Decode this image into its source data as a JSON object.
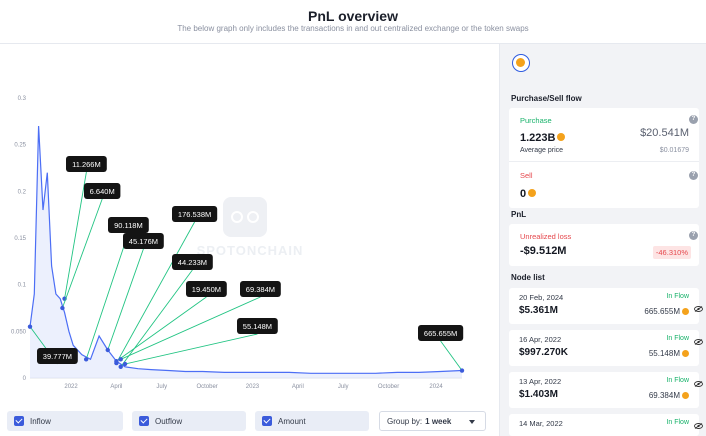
{
  "header": {
    "title": "PnL overview",
    "subtitle": "The below graph only includes the transactions in and out centralized exchange or the token swaps"
  },
  "watermark": "SPOTONCHAIN",
  "chart_data": {
    "type": "area",
    "y_ticks": [
      "0",
      "0.050",
      "0.1",
      "0.15",
      "0.2",
      "0.25",
      "0.3"
    ],
    "x_ticks": [
      "2022",
      "April",
      "July",
      "October",
      "2023",
      "April",
      "July",
      "October",
      "2024"
    ],
    "ylim": [
      0,
      0.3
    ],
    "grid": false,
    "price_series": {
      "x": [
        0,
        0.01,
        0.02,
        0.03,
        0.04,
        0.05,
        0.06,
        0.07,
        0.08,
        0.09,
        0.1,
        0.12,
        0.14,
        0.16,
        0.18,
        0.2,
        0.22,
        0.25,
        0.28,
        0.32,
        0.36,
        0.4,
        0.45,
        0.5,
        0.55,
        0.6,
        0.65,
        0.7,
        0.75,
        0.8,
        0.85,
        0.9,
        0.95,
        1.0
      ],
      "y": [
        0.055,
        0.09,
        0.27,
        0.18,
        0.22,
        0.12,
        0.09,
        0.085,
        0.07,
        0.05,
        0.035,
        0.025,
        0.02,
        0.045,
        0.03,
        0.018,
        0.012,
        0.01,
        0.009,
        0.008,
        0.007,
        0.007,
        0.006,
        0.006,
        0.006,
        0.006,
        0.005,
        0.005,
        0.005,
        0.005,
        0.006,
        0.006,
        0.007,
        0.008
      ]
    },
    "annotations": [
      {
        "label": "11.266M"
      },
      {
        "label": "6.640M"
      },
      {
        "label": "90.118M"
      },
      {
        "label": "176.538M"
      },
      {
        "label": "45.176M"
      },
      {
        "label": "44.233M"
      },
      {
        "label": "19.450M"
      },
      {
        "label": "69.384M"
      },
      {
        "label": "55.148M"
      },
      {
        "label": "39.777M"
      },
      {
        "label": "665.655M"
      }
    ]
  },
  "controls": {
    "inflow": "Inflow",
    "outflow": "Outflow",
    "amount": "Amount",
    "group_by_label": "Group by:",
    "group_by_value": "1 week"
  },
  "sidebar": {
    "purchase_sell_title": "Purchase/Sell flow",
    "purchase_label": "Purchase",
    "purchase_amount": "1.223B",
    "purchase_usd": "$20.541M",
    "avg_price_label": "Average price",
    "avg_price_value": "$0.01679",
    "sell_label": "Sell",
    "sell_amount": "0",
    "pnl_title": "PnL",
    "unrealized_label": "Unrealized loss",
    "unrealized_value": "-$9.512M",
    "unrealized_pct": "-46.310%",
    "node_list_title": "Node list",
    "nodes": [
      {
        "date": "20 Feb, 2024",
        "flow": "In Flow",
        "value": "$5.361M",
        "amount": "665.655M"
      },
      {
        "date": "16 Apr, 2022",
        "flow": "In Flow",
        "value": "$997.270K",
        "amount": "55.148M"
      },
      {
        "date": "13 Apr, 2022",
        "flow": "In Flow",
        "value": "$1.403M",
        "amount": "69.384M"
      },
      {
        "date": "14 Mar, 2022",
        "flow": "In Flow",
        "value": "",
        "amount": ""
      }
    ]
  },
  "colors": {
    "accent": "#3b5bdb",
    "green": "#17b26a",
    "red": "#e5484d",
    "line": "#4c6ef5"
  }
}
